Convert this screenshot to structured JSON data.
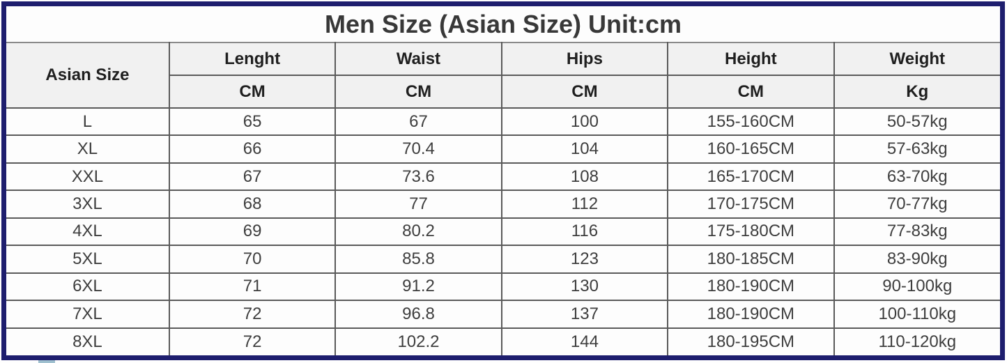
{
  "colors": {
    "frame_border": "#1e1e6e",
    "grid_line": "#5a5a5a",
    "header_background": "#f1f1f1",
    "title_text": "#383838",
    "cell_text": "#3e3e3e"
  },
  "chart_data": {
    "type": "table",
    "title": "Men Size (Asian Size) Unit:cm",
    "columns": [
      {
        "label": "Asian Size",
        "unit": ""
      },
      {
        "label": "Lenght",
        "unit": "CM"
      },
      {
        "label": "Waist",
        "unit": "CM"
      },
      {
        "label": "Hips",
        "unit": "CM"
      },
      {
        "label": "Height",
        "unit": "CM"
      },
      {
        "label": "Weight",
        "unit": "Kg"
      }
    ],
    "rows": [
      [
        "L",
        "65",
        "67",
        "100",
        "155-160CM",
        "50-57kg"
      ],
      [
        "XL",
        "66",
        "70.4",
        "104",
        "160-165CM",
        "57-63kg"
      ],
      [
        "XXL",
        "67",
        "73.6",
        "108",
        "165-170CM",
        "63-70kg"
      ],
      [
        "3XL",
        "68",
        "77",
        "112",
        "170-175CM",
        "70-77kg"
      ],
      [
        "4XL",
        "69",
        "80.2",
        "116",
        "175-180CM",
        "77-83kg"
      ],
      [
        "5XL",
        "70",
        "85.8",
        "123",
        "180-185CM",
        "83-90kg"
      ],
      [
        "6XL",
        "71",
        "91.2",
        "130",
        "180-190CM",
        "90-100kg"
      ],
      [
        "7XL",
        "72",
        "96.8",
        "137",
        "180-190CM",
        "100-110kg"
      ],
      [
        "8XL",
        "72",
        "102.2",
        "144",
        "180-195CM",
        "110-120kg"
      ]
    ]
  }
}
